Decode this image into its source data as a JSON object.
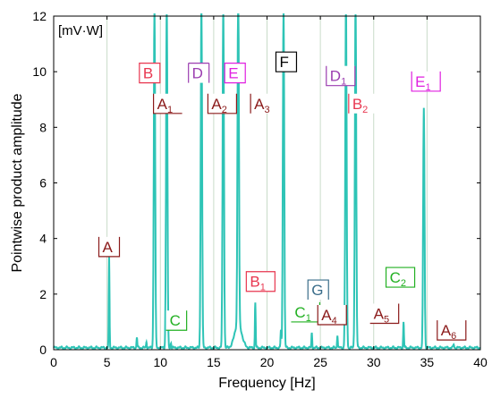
{
  "chart_data": {
    "type": "line",
    "title": "",
    "xlabel": "Frequency [Hz]",
    "ylabel": "Pointwise product amplitude",
    "unit_label": "[mV·W]",
    "xlim": [
      0,
      40
    ],
    "ylim": [
      0,
      12
    ],
    "xticks": [
      "0",
      "5",
      "10",
      "15",
      "20",
      "25",
      "30",
      "35",
      "40"
    ],
    "yticks": [
      "0",
      "2",
      "4",
      "6",
      "8",
      "10",
      "12"
    ],
    "grid": "vertical",
    "line_color": "#2ec4b6",
    "baseline_level": 0.07,
    "peaks": [
      {
        "x": 5.2,
        "y": 3.3
      },
      {
        "x": 7.8,
        "y": 0.45
      },
      {
        "x": 8.7,
        "y": 0.3
      },
      {
        "x": 9.45,
        "y": 12.5
      },
      {
        "x": 10.6,
        "y": 12.5
      },
      {
        "x": 11.0,
        "y": 0.25
      },
      {
        "x": 13.85,
        "y": 12.5
      },
      {
        "x": 15.9,
        "y": 12.5
      },
      {
        "x": 17.3,
        "y": 12.5
      },
      {
        "x": 18.9,
        "y": 1.7
      },
      {
        "x": 21.3,
        "y": 0.7
      },
      {
        "x": 21.55,
        "y": 12.5
      },
      {
        "x": 24.2,
        "y": 0.6
      },
      {
        "x": 26.6,
        "y": 0.55
      },
      {
        "x": 27.4,
        "y": 12.5
      },
      {
        "x": 28.3,
        "y": 12.5
      },
      {
        "x": 32.8,
        "y": 1.0
      },
      {
        "x": 34.7,
        "y": 8.7
      },
      {
        "x": 37.5,
        "y": 0.2
      }
    ],
    "annotations": [
      {
        "base": "A",
        "sub": "",
        "color": "#8b1a1a",
        "x": 5.2,
        "y": 3.35,
        "box": "under"
      },
      {
        "base": "B",
        "sub": "",
        "color": "#e8364f",
        "x": 9.0,
        "y": 9.6,
        "box": "full"
      },
      {
        "base": "A",
        "sub": "1",
        "color": "#8b1a1a",
        "x": 10.7,
        "y": 8.5,
        "box": "under-left"
      },
      {
        "base": "C",
        "sub": "",
        "color": "#22b022",
        "x": 11.5,
        "y": 0.7,
        "box": "under-right"
      },
      {
        "base": "D",
        "sub": "",
        "color": "#9b3db0",
        "x": 13.6,
        "y": 9.6,
        "box": "over-sides"
      },
      {
        "base": "A",
        "sub": "2",
        "color": "#8b1a1a",
        "x": 15.8,
        "y": 8.5,
        "box": "under"
      },
      {
        "base": "E",
        "sub": "",
        "color": "#e020e0",
        "x": 17.0,
        "y": 9.6,
        "box": "full"
      },
      {
        "base": "A",
        "sub": "3",
        "color": "#8b1a1a",
        "x": 19.8,
        "y": 8.5,
        "box": "left-bar"
      },
      {
        "base": "B",
        "sub": "1",
        "color": "#e8364f",
        "x": 19.4,
        "y": 2.1,
        "box": "full"
      },
      {
        "base": "F",
        "sub": "",
        "color": "#000000",
        "x": 21.8,
        "y": 10.0,
        "box": "full"
      },
      {
        "base": "C",
        "sub": "1",
        "color": "#22b022",
        "x": 23.6,
        "y": 1.0,
        "box": "under-right"
      },
      {
        "base": "G",
        "sub": "",
        "color": "#3a6d8a",
        "x": 24.8,
        "y": 1.8,
        "box": "over"
      },
      {
        "base": "A",
        "sub": "4",
        "color": "#8b1a1a",
        "x": 26.1,
        "y": 0.9,
        "box": "under"
      },
      {
        "base": "D",
        "sub": "1",
        "color": "#9b3db0",
        "x": 26.9,
        "y": 9.5,
        "box": "under"
      },
      {
        "base": "B",
        "sub": "2",
        "color": "#e8364f",
        "x": 29.0,
        "y": 8.5,
        "box": "left-bar"
      },
      {
        "base": "A",
        "sub": "5",
        "color": "#8b1a1a",
        "x": 31.0,
        "y": 0.95,
        "box": "under-right"
      },
      {
        "base": "C",
        "sub": "2",
        "color": "#22b022",
        "x": 32.5,
        "y": 2.25,
        "box": "full"
      },
      {
        "base": "E",
        "sub": "1",
        "color": "#e020e0",
        "x": 34.9,
        "y": 9.3,
        "box": "under"
      },
      {
        "base": "A",
        "sub": "6",
        "color": "#8b1a1a",
        "x": 37.3,
        "y": 0.35,
        "box": "under"
      }
    ]
  }
}
